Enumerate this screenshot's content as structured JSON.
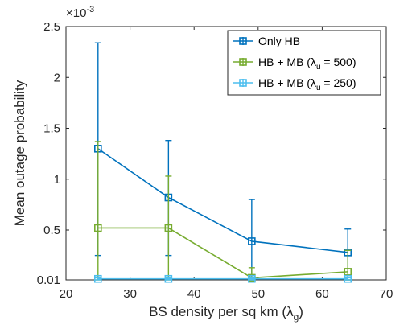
{
  "chart_data": {
    "type": "line",
    "title": "",
    "xlabel_text": "BS density per sq km",
    "xlabel_symbol": "λ",
    "xlabel_sub": "g",
    "ylabel": "Mean outage probability",
    "y_exponent_prefix": "×10",
    "y_exponent_power": "-3",
    "xlim": [
      20,
      70
    ],
    "ylim": [
      0.01,
      2.5
    ],
    "xticks": [
      20,
      30,
      40,
      50,
      60,
      70
    ],
    "xtick_labels": [
      "20",
      "30",
      "40",
      "50",
      "60",
      "70"
    ],
    "yticks": [
      0.01,
      0.5,
      1,
      1.5,
      2,
      2.5
    ],
    "ytick_labels": [
      "0.01",
      "0.5",
      "1",
      "1.5",
      "2",
      "2.5"
    ],
    "grid": false,
    "legend_position": "top-right",
    "x": [
      25,
      36,
      49,
      64
    ],
    "series": [
      {
        "name": "Only HB",
        "label_sub": "",
        "label_tail": "",
        "color": "#0072BD",
        "values": [
          1.3,
          0.82,
          0.39,
          0.28
        ],
        "err_low": [
          0.25,
          0.25,
          0.01,
          0.01
        ],
        "err_high": [
          2.34,
          1.38,
          0.8,
          0.51
        ]
      },
      {
        "name": "HB + MB (λ",
        "label_sub": "u",
        "label_tail": " = 500)",
        "color": "#77AC30",
        "values": [
          0.52,
          0.52,
          0.03,
          0.09
        ],
        "err_low": [
          0.01,
          0.01,
          0.01,
          0.01
        ],
        "err_high": [
          1.37,
          1.03,
          0.13,
          0.3
        ]
      },
      {
        "name": "HB + MB (λ",
        "label_sub": "u",
        "label_tail": " = 250)",
        "color": "#4DBEEE",
        "values": [
          0.02,
          0.02,
          0.02,
          0.02
        ],
        "err_low": [
          0.01,
          0.01,
          0.01,
          0.01
        ],
        "err_high": [
          0.03,
          0.03,
          0.03,
          0.03
        ]
      }
    ]
  }
}
